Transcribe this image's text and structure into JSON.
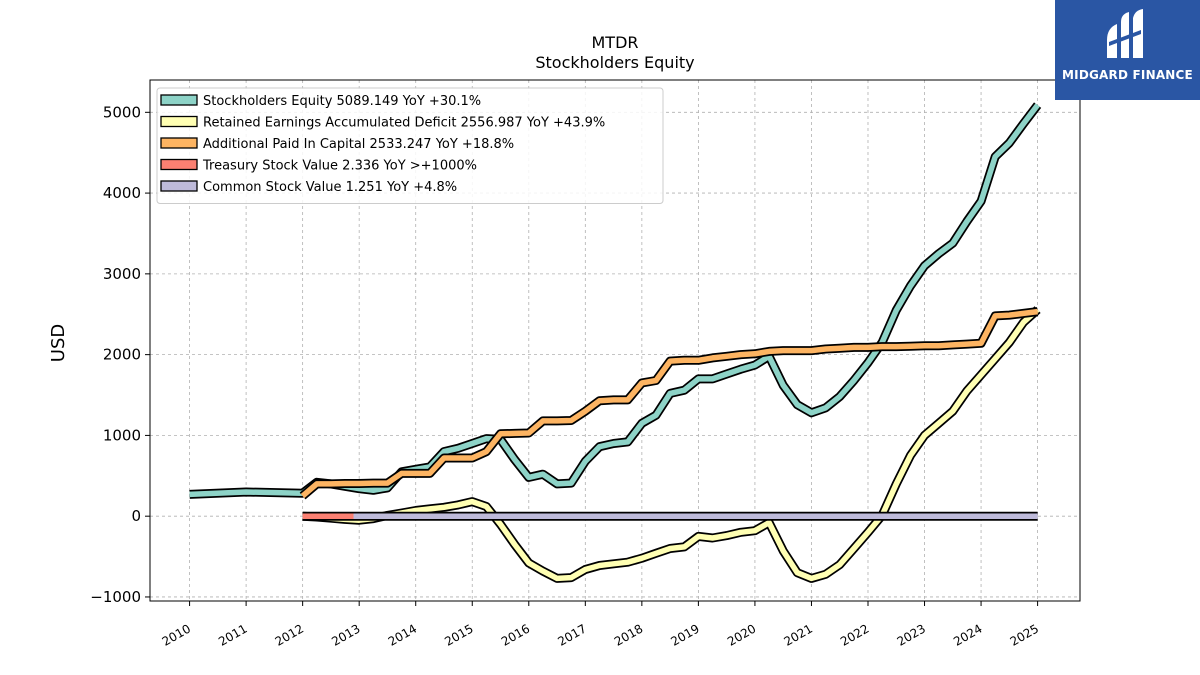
{
  "logo": {
    "text": "MIDGARD FINANCE",
    "bg": "#2a56a4"
  },
  "chart_data": {
    "type": "line",
    "title": "MTDR",
    "subtitle": "Stockholders  Equity",
    "ylabel": "USD",
    "xlabel": "",
    "xlim": [
      2009.3,
      2025.75
    ],
    "ylim": [
      -1050,
      5400
    ],
    "grid": true,
    "legend_position": "top-left",
    "x_ticks": [
      "2010",
      "2011",
      "2012",
      "2013",
      "2014",
      "2015",
      "2016",
      "2017",
      "2018",
      "2019",
      "2020",
      "2021",
      "2022",
      "2023",
      "2024",
      "2025"
    ],
    "y_ticks": [
      {
        "v": -1000,
        "label": "−1000"
      },
      {
        "v": 0,
        "label": "0"
      },
      {
        "v": 1000,
        "label": "1000"
      },
      {
        "v": 2000,
        "label": "2000"
      },
      {
        "v": 3000,
        "label": "3000"
      },
      {
        "v": 4000,
        "label": "4000"
      },
      {
        "v": 5000,
        "label": "5000"
      }
    ],
    "series": [
      {
        "name": "Stockholders Equity",
        "legend": "Stockholders Equity  5089.149 YoY +30.1%",
        "color": "#8dd3c7",
        "points": [
          [
            2010,
            270
          ],
          [
            2011,
            300
          ],
          [
            2012,
            285
          ],
          [
            2012.25,
            420
          ],
          [
            2012.5,
            400
          ],
          [
            2012.75,
            370
          ],
          [
            2013,
            340
          ],
          [
            2013.25,
            320
          ],
          [
            2013.5,
            350
          ],
          [
            2013.75,
            550
          ],
          [
            2014,
            580
          ],
          [
            2014.25,
            610
          ],
          [
            2014.5,
            800
          ],
          [
            2014.75,
            840
          ],
          [
            2015,
            900
          ],
          [
            2015.25,
            960
          ],
          [
            2015.5,
            950
          ],
          [
            2015.75,
            700
          ],
          [
            2016,
            480
          ],
          [
            2016.25,
            520
          ],
          [
            2016.5,
            400
          ],
          [
            2016.75,
            410
          ],
          [
            2017,
            680
          ],
          [
            2017.25,
            860
          ],
          [
            2017.5,
            900
          ],
          [
            2017.75,
            920
          ],
          [
            2018,
            1150
          ],
          [
            2018.25,
            1250
          ],
          [
            2018.5,
            1520
          ],
          [
            2018.75,
            1560
          ],
          [
            2019,
            1700
          ],
          [
            2019.25,
            1700
          ],
          [
            2019.5,
            1760
          ],
          [
            2019.75,
            1820
          ],
          [
            2020,
            1870
          ],
          [
            2020.25,
            1980
          ],
          [
            2020.5,
            1620
          ],
          [
            2020.75,
            1380
          ],
          [
            2021,
            1280
          ],
          [
            2021.25,
            1340
          ],
          [
            2021.5,
            1480
          ],
          [
            2021.75,
            1680
          ],
          [
            2022,
            1900
          ],
          [
            2022.25,
            2150
          ],
          [
            2022.5,
            2550
          ],
          [
            2022.75,
            2850
          ],
          [
            2023,
            3100
          ],
          [
            2023.25,
            3250
          ],
          [
            2023.5,
            3380
          ],
          [
            2023.75,
            3650
          ],
          [
            2024,
            3900
          ],
          [
            2024.25,
            4450
          ],
          [
            2024.5,
            4620
          ],
          [
            2024.75,
            4860
          ],
          [
            2025,
            5089.149
          ]
        ]
      },
      {
        "name": "Retained Earnings Accumulated Deficit",
        "legend": "Retained Earnings Accumulated Deficit  2556.987 YoY +43.9%",
        "color": "#ffffb3",
        "points": [
          [
            2012,
            0
          ],
          [
            2012.25,
            -10
          ],
          [
            2012.5,
            -25
          ],
          [
            2012.75,
            -40
          ],
          [
            2013,
            -50
          ],
          [
            2013.25,
            -30
          ],
          [
            2013.5,
            10
          ],
          [
            2013.75,
            40
          ],
          [
            2014,
            70
          ],
          [
            2014.25,
            90
          ],
          [
            2014.5,
            110
          ],
          [
            2014.75,
            140
          ],
          [
            2015,
            180
          ],
          [
            2015.25,
            120
          ],
          [
            2015.5,
            -100
          ],
          [
            2015.75,
            -350
          ],
          [
            2016,
            -580
          ],
          [
            2016.25,
            -680
          ],
          [
            2016.5,
            -770
          ],
          [
            2016.75,
            -760
          ],
          [
            2017,
            -660
          ],
          [
            2017.25,
            -610
          ],
          [
            2017.5,
            -590
          ],
          [
            2017.75,
            -570
          ],
          [
            2018,
            -520
          ],
          [
            2018.25,
            -460
          ],
          [
            2018.5,
            -400
          ],
          [
            2018.75,
            -380
          ],
          [
            2019,
            -250
          ],
          [
            2019.25,
            -270
          ],
          [
            2019.5,
            -240
          ],
          [
            2019.75,
            -200
          ],
          [
            2020,
            -180
          ],
          [
            2020.25,
            -80
          ],
          [
            2020.5,
            -430
          ],
          [
            2020.75,
            -700
          ],
          [
            2021,
            -770
          ],
          [
            2021.25,
            -720
          ],
          [
            2021.5,
            -600
          ],
          [
            2021.75,
            -400
          ],
          [
            2022,
            -200
          ],
          [
            2022.25,
            10
          ],
          [
            2022.5,
            400
          ],
          [
            2022.75,
            750
          ],
          [
            2023,
            1000
          ],
          [
            2023.25,
            1150
          ],
          [
            2023.5,
            1300
          ],
          [
            2023.75,
            1550
          ],
          [
            2024,
            1750
          ],
          [
            2024.25,
            1950
          ],
          [
            2024.5,
            2150
          ],
          [
            2024.75,
            2400
          ],
          [
            2025,
            2556.987
          ]
        ]
      },
      {
        "name": "Additional Paid In Capital",
        "legend": "Additional Paid In Capital  2533.247 YoY +18.8%",
        "color": "#fdb462",
        "points": [
          [
            2012,
            250
          ],
          [
            2012.25,
            400
          ],
          [
            2012.5,
            400
          ],
          [
            2012.75,
            405
          ],
          [
            2013,
            405
          ],
          [
            2013.25,
            410
          ],
          [
            2013.5,
            410
          ],
          [
            2013.75,
            530
          ],
          [
            2014,
            530
          ],
          [
            2014.25,
            530
          ],
          [
            2014.5,
            720
          ],
          [
            2014.75,
            720
          ],
          [
            2015,
            720
          ],
          [
            2015.25,
            800
          ],
          [
            2015.5,
            1020
          ],
          [
            2015.75,
            1025
          ],
          [
            2016,
            1030
          ],
          [
            2016.25,
            1180
          ],
          [
            2016.5,
            1180
          ],
          [
            2016.75,
            1185
          ],
          [
            2017,
            1300
          ],
          [
            2017.25,
            1430
          ],
          [
            2017.5,
            1440
          ],
          [
            2017.75,
            1440
          ],
          [
            2018,
            1650
          ],
          [
            2018.25,
            1680
          ],
          [
            2018.5,
            1920
          ],
          [
            2018.75,
            1930
          ],
          [
            2019,
            1930
          ],
          [
            2019.25,
            1960
          ],
          [
            2019.5,
            1980
          ],
          [
            2019.75,
            2000
          ],
          [
            2020,
            2010
          ],
          [
            2020.25,
            2040
          ],
          [
            2020.5,
            2050
          ],
          [
            2020.75,
            2050
          ],
          [
            2021,
            2050
          ],
          [
            2021.25,
            2070
          ],
          [
            2021.5,
            2080
          ],
          [
            2021.75,
            2090
          ],
          [
            2022,
            2090
          ],
          [
            2022.25,
            2100
          ],
          [
            2022.5,
            2100
          ],
          [
            2022.75,
            2105
          ],
          [
            2023,
            2110
          ],
          [
            2023.25,
            2110
          ],
          [
            2023.5,
            2120
          ],
          [
            2023.75,
            2130
          ],
          [
            2024,
            2140
          ],
          [
            2024.25,
            2480
          ],
          [
            2024.5,
            2490
          ],
          [
            2024.75,
            2510
          ],
          [
            2025,
            2533.247
          ]
        ]
      },
      {
        "name": "Treasury Stock Value",
        "legend": "Treasury Stock Value  2.336 YoY >+1000%",
        "color": "#fb8072",
        "points": [
          [
            2012,
            0
          ],
          [
            2012.5,
            0
          ],
          [
            2012.9,
            0
          ]
        ]
      },
      {
        "name": "Common Stock Value",
        "legend": "Common Stock Value  1.251 YoY +4.8%",
        "color": "#bebada",
        "points": [
          [
            2012.9,
            0
          ],
          [
            2014,
            0
          ],
          [
            2016,
            0
          ],
          [
            2018,
            0
          ],
          [
            2020,
            0
          ],
          [
            2022,
            0
          ],
          [
            2024,
            0
          ],
          [
            2025,
            0
          ]
        ]
      }
    ]
  }
}
